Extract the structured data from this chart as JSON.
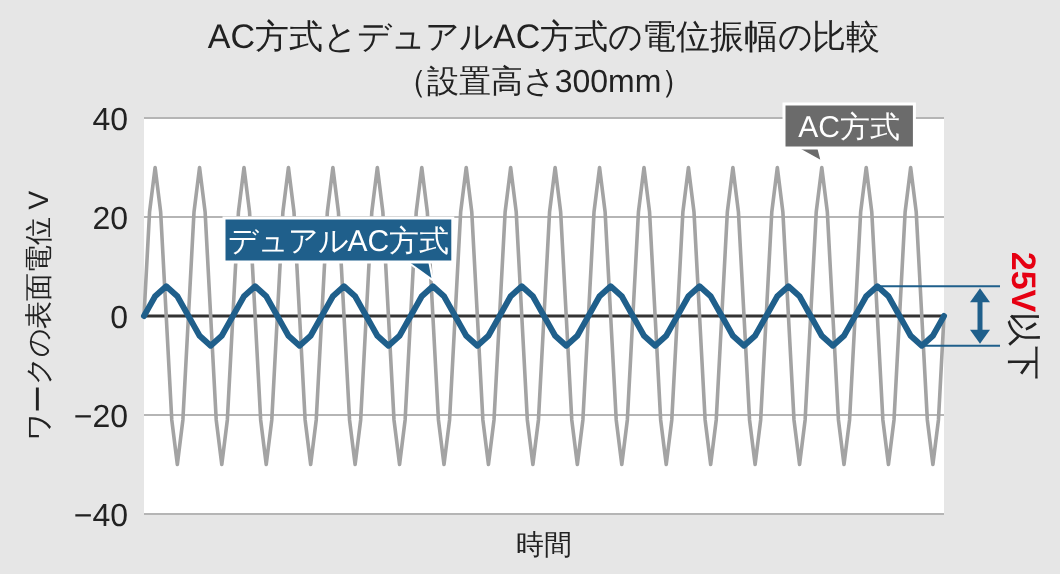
{
  "chart_data": {
    "type": "line",
    "title": "AC方式とデュアルAC方式の電位振幅の比較",
    "subtitle": "（設置高さ300mm）",
    "xlabel": "時間",
    "ylabel": "ワークの表面電位 V",
    "categories": [
      null,
      null,
      null,
      null,
      null,
      null,
      null,
      null,
      null,
      null,
      null,
      null,
      null,
      null,
      null,
      null,
      null,
      null,
      null,
      null,
      null,
      null,
      null,
      null,
      null,
      null,
      null,
      null,
      null,
      null,
      null,
      null,
      null,
      null,
      null,
      null,
      null,
      null,
      null,
      null,
      null,
      null,
      null,
      null,
      null,
      null,
      null,
      null,
      null,
      null,
      null,
      null,
      null,
      null,
      null,
      null,
      null,
      null,
      null,
      null,
      null,
      null,
      null,
      null,
      null,
      null,
      null,
      null,
      null,
      null,
      null,
      null,
      null,
      null,
      null,
      null,
      null,
      null,
      null,
      null,
      null,
      null,
      null,
      null,
      null,
      null,
      null,
      null,
      null,
      null,
      null,
      null,
      null,
      null,
      null,
      null,
      null,
      null,
      null,
      null,
      null,
      null,
      null,
      null,
      null,
      null,
      null,
      null,
      null,
      null,
      null,
      null,
      null,
      null,
      null,
      null,
      null,
      null,
      null,
      null,
      null,
      null,
      null,
      null,
      null,
      null,
      null,
      null,
      null,
      null,
      null,
      null,
      null,
      null,
      null,
      null,
      null,
      null,
      null,
      null,
      null,
      null,
      null,
      null,
      null
    ],
    "ylim": [
      -40,
      40
    ],
    "yticks": [
      -40,
      -20,
      0,
      20,
      40
    ],
    "grid": "y",
    "tick_labels": "y",
    "series": [
      {
        "name": "AC方式",
        "color": "#a3a3a3",
        "values": [
          0,
          21,
          30,
          21,
          0,
          -21,
          -30,
          -21,
          0,
          21,
          30,
          21,
          0,
          -21,
          -30,
          -21,
          0,
          21,
          30,
          21,
          0,
          -21,
          -30,
          -21,
          0,
          21,
          30,
          21,
          0,
          -21,
          -30,
          -21,
          0,
          21,
          30,
          21,
          0,
          -21,
          -30,
          -21,
          0,
          21,
          30,
          21,
          0,
          -21,
          -30,
          -21,
          0,
          21,
          30,
          21,
          0,
          -21,
          -30,
          -21,
          0,
          21,
          30,
          21,
          0,
          -21,
          -30,
          -21,
          0,
          21,
          30,
          21,
          0,
          -21,
          -30,
          -21,
          0,
          21,
          30,
          21,
          0,
          -21,
          -30,
          -21,
          0,
          21,
          30,
          21,
          0,
          -21,
          -30,
          -21,
          0,
          21,
          30,
          21,
          0,
          -21,
          -30,
          -21,
          0,
          21,
          30,
          21,
          0,
          -21,
          -30,
          -21,
          0,
          21,
          30,
          21,
          0,
          -21,
          -30,
          -21,
          0,
          21,
          30,
          21,
          0,
          -21,
          -30,
          -21,
          0,
          21,
          30,
          21,
          0,
          -21,
          -30,
          -21,
          0,
          21,
          30,
          21,
          0,
          -21,
          -30,
          -21,
          0,
          21,
          30,
          21,
          0,
          -21,
          -30,
          -21,
          0
        ]
      },
      {
        "name": "デュアルAC方式",
        "color": "#1f5f8b",
        "values": [
          0,
          2,
          4,
          5,
          6,
          5,
          4,
          2,
          0,
          -2,
          -4,
          -5,
          -6,
          -5,
          -4,
          -2,
          0,
          2,
          4,
          5,
          6,
          5,
          4,
          2,
          0,
          -2,
          -4,
          -5,
          -6,
          -5,
          -4,
          -2,
          0,
          2,
          4,
          5,
          6,
          5,
          4,
          2,
          0,
          -2,
          -4,
          -5,
          -6,
          -5,
          -4,
          -2,
          0,
          2,
          4,
          5,
          6,
          5,
          4,
          2,
          0,
          -2,
          -4,
          -5,
          -6,
          -5,
          -4,
          -2,
          0,
          2,
          4,
          5,
          6,
          5,
          4,
          2,
          0,
          -2,
          -4,
          -5,
          -6,
          -5,
          -4,
          -2,
          0,
          2,
          4,
          5,
          6,
          5,
          4,
          2,
          0,
          -2,
          -4,
          -5,
          -6,
          -5,
          -4,
          -2,
          0,
          2,
          4,
          5,
          6,
          5,
          4,
          2,
          0,
          -2,
          -4,
          -5,
          -6,
          -5,
          -4,
          -2,
          0,
          2,
          4,
          5,
          6,
          5,
          4,
          2,
          0,
          -2,
          -4,
          -5,
          -6,
          -5,
          -4,
          -2,
          0,
          2,
          4,
          5,
          6,
          5,
          4,
          2,
          0,
          -2,
          -4,
          -5,
          -6,
          -5,
          -4,
          -2,
          0
        ]
      }
    ],
    "ref_lines": [
      {
        "axis": "y",
        "value": 0,
        "color": "#333333"
      }
    ],
    "annotations": [
      "25V以下"
    ]
  }
}
